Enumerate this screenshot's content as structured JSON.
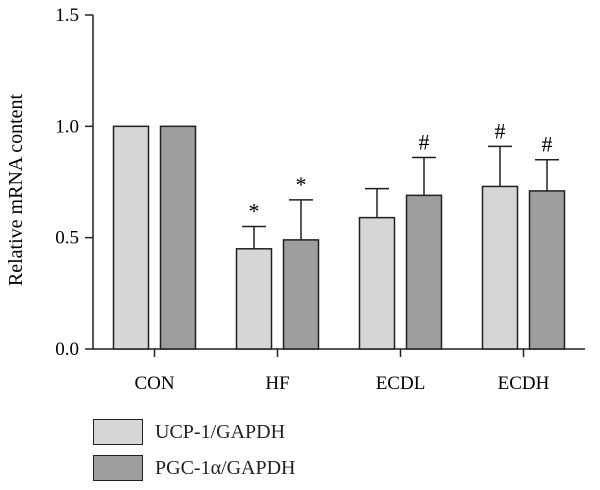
{
  "chart_data": {
    "type": "bar",
    "categories": [
      "CON",
      "HF",
      "ECDL",
      "ECDH"
    ],
    "ylabel": "Relative mRNA content",
    "xlabel": "",
    "ylim": [
      0,
      1.5
    ],
    "yticks": [
      "0.0",
      "0.5",
      "1.0",
      "1.5"
    ],
    "series": [
      {
        "name": "UCP-1/GAPDH",
        "color": "#d6d6d6",
        "values": [
          1.0,
          0.45,
          0.59,
          0.73
        ],
        "errors": [
          0,
          0.1,
          0.13,
          0.18
        ],
        "annotations": [
          "",
          "*",
          "",
          "#"
        ]
      },
      {
        "name": "PGC-1α/GAPDH",
        "color": "#9e9e9e",
        "values": [
          1.0,
          0.49,
          0.69,
          0.71
        ],
        "errors": [
          0,
          0.18,
          0.17,
          0.14
        ],
        "annotations": [
          "",
          "*",
          "#",
          "#"
        ]
      }
    ],
    "grid": false,
    "legend_position": "bottom-left"
  }
}
